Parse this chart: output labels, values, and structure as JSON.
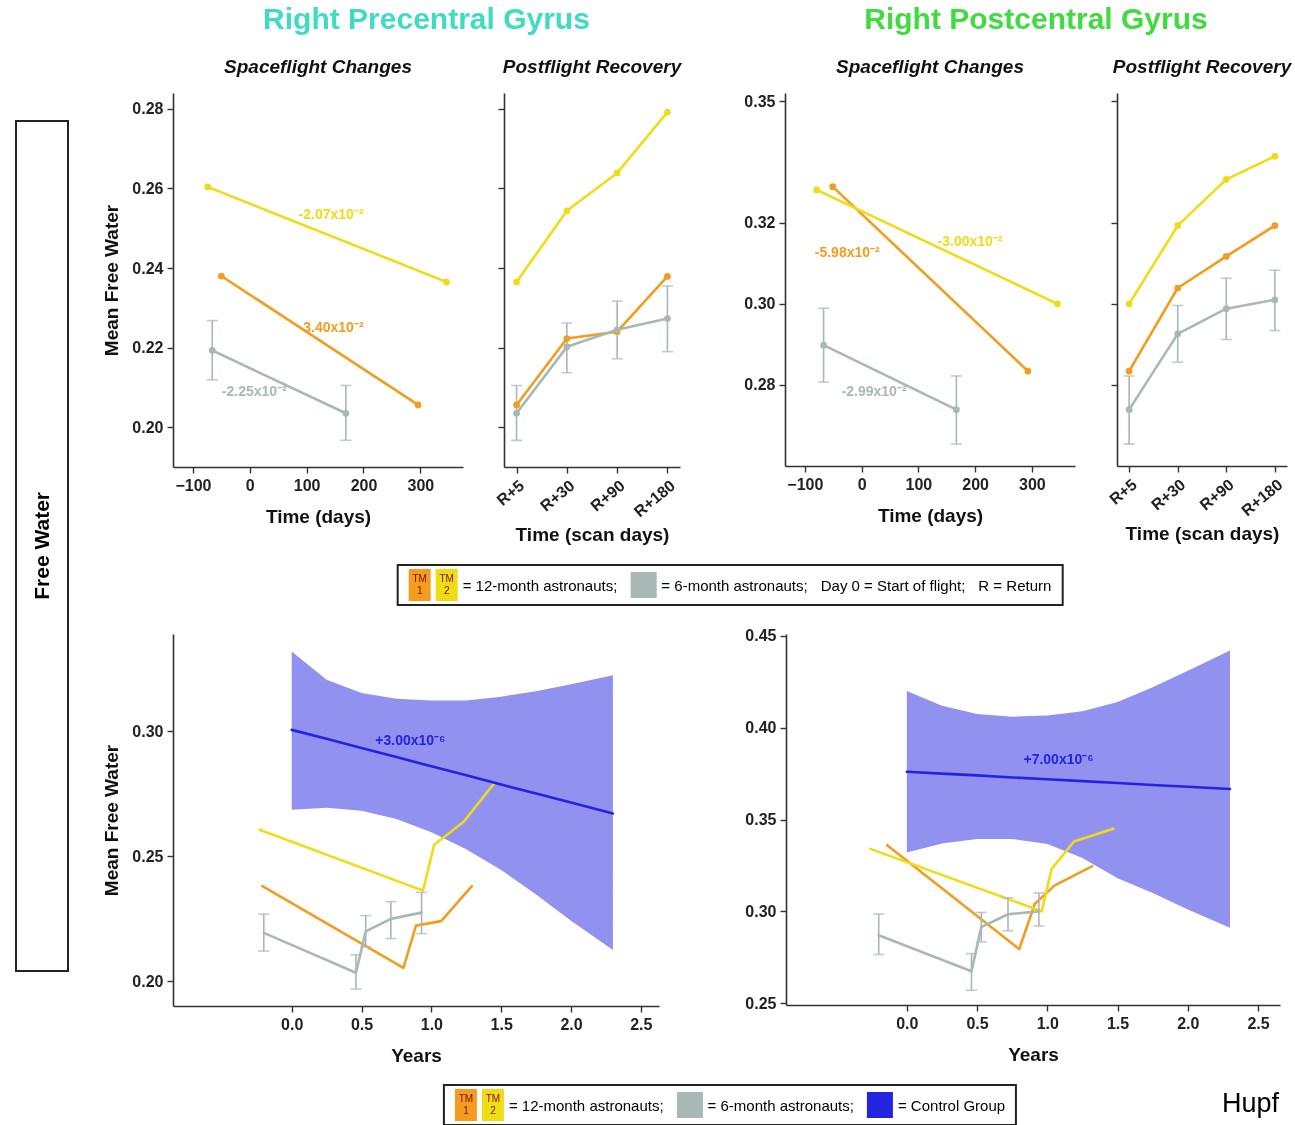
{
  "chart_data": [
    {
      "type": "line",
      "title": "Right Precentral Gyrus",
      "subtitle": "Spaceflight Changes",
      "xlabel": "Time (days)",
      "ylabel": "Mean Free Water",
      "xlim": [
        -135,
        375
      ],
      "xticks": [
        -100,
        0,
        100,
        200,
        300
      ],
      "ylim": [
        0.19,
        0.284
      ],
      "yticks": [
        {
          "value": 0.2,
          "label": "0.20"
        },
        0.22,
        0.24,
        0.26,
        0.28
      ],
      "grid": false,
      "marker": "circle",
      "line_style": "solid",
      "series": [
        {
          "color": "#f39c1e",
          "x": [
            -50,
            296
          ],
          "values": [
            0.238,
            0.2056
          ]
        },
        {
          "color": "#f0dc14",
          "x": [
            -74,
            346
          ],
          "values": [
            0.2604,
            0.2365
          ]
        },
        {
          "color": "#a8b8b4",
          "x": [
            -66,
            169
          ],
          "values": [
            0.2193,
            0.2035
          ],
          "errors": [
            [
              0.2119,
              0.2268
            ],
            [
              0.1967,
              0.2105
            ]
          ]
        }
      ],
      "annotations": [
        {
          "text": "-2.07x10⁻²",
          "x": 143,
          "y": 0.2482
        },
        {
          "text": "-3.40x10⁻²",
          "x": 143,
          "y": 0.22
        },
        {
          "text": "-2.25x10⁻²",
          "x": 8,
          "y": 0.2143
        },
        "TM 1",
        "TM 2",
        "= 12-month astronauts;",
        "= 6-month astronauts;",
        "Day 0 = Start of flight;",
        "R = Return"
      ]
    },
    {
      "type": "line",
      "subtitle": "Postflight Recovery",
      "xlabel": "Time (scan days)",
      "categories": [
        "R+5",
        "R+30",
        "R+90",
        "R+180"
      ],
      "ylim": [
        0.19,
        0.284
      ],
      "yticks": [
        0.2,
        0.22,
        0.24,
        0.26,
        0.28
      ],
      "tick_labels": "x",
      "grid": false,
      "marker": "circle",
      "line_style": "solid",
      "series": [
        {
          "color": "#f39c1e",
          "values": [
            0.2056,
            0.2223,
            0.224,
            0.2379
          ]
        },
        {
          "color": "#f0dc14",
          "values": [
            0.2365,
            0.2544,
            0.2639,
            0.2792
          ]
        },
        {
          "color": "#a8b8b4",
          "values": [
            0.2035,
            0.2202,
            0.2245,
            0.2273
          ],
          "errors": [
            [
              0.1967,
              0.2105
            ],
            [
              0.2137,
              0.2262
            ],
            [
              0.2172,
              0.2317
            ],
            [
              0.219,
              0.2355
            ]
          ]
        }
      ],
      "annotations": [
        "Free Water"
      ]
    },
    {
      "type": "line",
      "title": "Right Postcentral Gyrus",
      "subtitle": "Spaceflight Changes",
      "xlabel": "Time (days)",
      "xlim": [
        -135,
        376
      ],
      "xticks": [
        -100,
        0,
        100,
        200,
        300
      ],
      "ylim": [
        0.26,
        0.352
      ],
      "yticks": [
        0.28,
        {
          "value": 0.3,
          "label": "0.30"
        },
        0.32,
        0.35
      ],
      "grid": false,
      "marker": "circle",
      "line_style": "solid",
      "series": [
        {
          "color": "#f39c1e",
          "x": [
            -51,
            293
          ],
          "values": [
            0.3289,
            0.2834
          ]
        },
        {
          "color": "#f0dc14",
          "x": [
            -79,
            345
          ],
          "values": [
            0.3281,
            0.3
          ]
        },
        {
          "color": "#a8b8b4",
          "x": [
            -67,
            167
          ],
          "values": [
            0.2898,
            0.2739
          ],
          "errors": [
            [
              0.2807,
              0.2989
            ],
            [
              0.2654,
              0.2822
            ]
          ]
        }
      ],
      "annotations": [
        {
          "text": "-3.00x10⁻²",
          "x": 191,
          "y": 0.3102
        },
        {
          "text": "-5.98x10⁻²",
          "x": 53,
          "y": 0.3151
        },
        {
          "text": "-2.99x10⁻²",
          "x": 22,
          "y": 0.2838
        }
      ]
    },
    {
      "type": "line",
      "subtitle": "Postflight Recovery",
      "xlabel": "Time (scan days)",
      "categories": [
        "R+5",
        "R+30",
        "R+90",
        "R+180"
      ],
      "ylim": [
        0.26,
        0.352
      ],
      "yticks": [
        0.28,
        0.3,
        0.32,
        0.35
      ],
      "tick_labels": "x",
      "grid": false,
      "marker": "circle",
      "line_style": "solid",
      "series": [
        {
          "color": "#f39c1e",
          "values": [
            0.2834,
            0.3039,
            0.3117,
            0.3193
          ]
        },
        {
          "color": "#f0dc14",
          "values": [
            0.3,
            0.3193,
            0.3307,
            0.3364
          ]
        },
        {
          "color": "#a8b8b4",
          "values": [
            0.2739,
            0.2926,
            0.2988,
            0.301
          ],
          "errors": [
            [
              0.2654,
              0.2822
            ],
            [
              0.2856,
              0.2996
            ],
            [
              0.2912,
              0.3063
            ],
            [
              0.2934,
              0.3083
            ]
          ]
        }
      ]
    },
    {
      "type": "line",
      "xlabel": "Years",
      "ylabel": "Mean Free Water",
      "xlim": [
        -0.85,
        2.63
      ],
      "xticks": [
        {
          "value": 0,
          "label": "0.0"
        },
        0.5,
        {
          "value": 1,
          "label": "1.0"
        },
        1.5,
        {
          "value": 2,
          "label": "2.0"
        },
        2.5
      ],
      "ylim": [
        0.19,
        0.339
      ],
      "yticks": [
        {
          "value": 0.2,
          "label": "0.20"
        },
        0.25,
        {
          "value": 0.3,
          "label": "0.30"
        }
      ],
      "grid": false,
      "marker": "none",
      "line_style": "solid",
      "series": [
        {
          "color": "#f39c1e",
          "x": [
            -0.21,
            0.8,
            0.89,
            1.07,
            1.29
          ],
          "values": [
            0.238,
            0.2053,
            0.2222,
            0.224,
            0.238
          ]
        },
        {
          "color": "#f0dc14",
          "x": [
            -0.23,
            0.94,
            1.02,
            1.23,
            1.45
          ],
          "values": [
            0.2606,
            0.2362,
            0.2546,
            0.2637,
            0.2792
          ]
        },
        {
          "color": "#a8b8b4",
          "x": [
            -0.2,
            0.46,
            0.53,
            0.71,
            0.93
          ],
          "values": [
            0.2193,
            0.2033,
            0.2199,
            0.2249,
            0.2274
          ],
          "errors": [
            [
              0.212,
              0.2268
            ],
            [
              0.1968,
              0.2105
            ],
            [
              0.2137,
              0.2262
            ],
            [
              0.217,
              0.2318
            ],
            [
              0.219,
              0.2355
            ]
          ]
        },
        {
          "color": "#2424e0",
          "x": [
            0,
            0.25,
            0.5,
            0.75,
            1,
            1.25,
            1.5,
            1.75,
            2,
            2.3
          ],
          "values": [
            0.3006,
            0.297,
            0.2933,
            0.2897,
            0.286,
            0.2824,
            0.2787,
            0.2751,
            0.2715,
            0.2671
          ],
          "lower": [
            0.2686,
            0.2694,
            0.2682,
            0.2649,
            0.2596,
            0.2528,
            0.2445,
            0.2347,
            0.2241,
            0.2124
          ],
          "upper": [
            0.332,
            0.3207,
            0.3154,
            0.3131,
            0.3124,
            0.3124,
            0.3139,
            0.3161,
            0.3189,
            0.3225
          ]
        }
      ],
      "annotations": [
        {
          "text": "+3.00x10⁻⁶",
          "x": 0.85,
          "y": 0.2882
        },
        "TM 1",
        "TM 2",
        "= 12-month astronauts;",
        "= 6-month astronauts;",
        "= Control Group"
      ]
    },
    {
      "type": "line",
      "xlabel": "Years",
      "xlim": [
        -0.86,
        2.656
      ],
      "xticks": [
        {
          "value": 0,
          "label": "0.0"
        },
        0.5,
        {
          "value": 1,
          "label": "1.0"
        },
        1.5,
        {
          "value": 2,
          "label": "2.0"
        },
        2.5
      ],
      "ylim": [
        0.249,
        0.451
      ],
      "yticks": [
        0.25,
        {
          "value": 0.3,
          "label": "0.30"
        },
        0.35,
        {
          "value": 0.4,
          "label": "0.40"
        },
        0.45
      ],
      "grid": false,
      "marker": "none",
      "line_style": "solid",
      "series": [
        {
          "color": "#f39c1e",
          "x": [
            -0.14,
            0.8,
            0.91,
            1.05,
            1.32
          ],
          "values": [
            0.336,
            0.2794,
            0.304,
            0.314,
            0.3246
          ]
        },
        {
          "color": "#f0dc14",
          "x": [
            -0.26,
            0.96,
            1.03,
            1.19,
            1.47
          ],
          "values": [
            0.334,
            0.3,
            0.323,
            0.338,
            0.345
          ]
        },
        {
          "color": "#a8b8b4",
          "x": [
            -0.2,
            0.46,
            0.53,
            0.72,
            0.94
          ],
          "values": [
            0.287,
            0.2674,
            0.2914,
            0.2984,
            0.3
          ],
          "errors": [
            [
              0.2765,
              0.2985
            ],
            [
              0.257,
              0.277
            ],
            [
              0.2834,
              0.2994
            ],
            [
              0.2894,
              0.3074
            ],
            [
              0.292,
              0.31
            ]
          ]
        },
        {
          "color": "#2424e0",
          "x": [
            0,
            0.25,
            0.5,
            0.75,
            1,
            1.25,
            1.5,
            1.75,
            2,
            2.3
          ],
          "values": [
            0.376,
            0.375,
            0.374,
            0.3729,
            0.3719,
            0.3709,
            0.3699,
            0.3688,
            0.3678,
            0.3666
          ],
          "lower": [
            0.332,
            0.337,
            0.3394,
            0.3394,
            0.3366,
            0.329,
            0.318,
            0.31,
            0.301,
            0.291
          ],
          "upper": [
            0.42,
            0.412,
            0.4074,
            0.406,
            0.4066,
            0.409,
            0.414,
            0.422,
            0.431,
            0.442
          ]
        }
      ],
      "annotations": [
        {
          "text": "+7.00x10⁻⁶",
          "x": 1.08,
          "y": 0.3716
        },
        "Hupf"
      ]
    }
  ]
}
